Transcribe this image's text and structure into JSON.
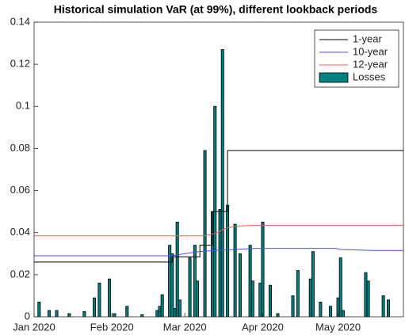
{
  "chart_data": {
    "type": "combo",
    "title": "Historical simulation VaR (at 99%), different lookback periods",
    "xlim": [
      0,
      147
    ],
    "xticks": [
      {
        "value": 0,
        "label": "Jan 2020"
      },
      {
        "value": 31,
        "label": "Feb 2020"
      },
      {
        "value": 60,
        "label": "Mar 2020"
      },
      {
        "value": 91,
        "label": "Apr 2020"
      },
      {
        "value": 121,
        "label": "May 2020"
      }
    ],
    "ylim": [
      0,
      0.14
    ],
    "yticks": [
      0,
      0.02,
      0.04,
      0.06,
      0.08,
      0.1,
      0.12,
      0.14
    ],
    "legend": "northeast",
    "series": [
      {
        "name": "1-year",
        "type": "line",
        "color": "#000000",
        "x": [
          0,
          55,
          55,
          66,
          66,
          71,
          71,
          77,
          77,
          147
        ],
        "values": [
          0.026,
          0.026,
          0.0285,
          0.0285,
          0.034,
          0.034,
          0.05,
          0.05,
          0.079,
          0.079
        ]
      },
      {
        "name": "10-year",
        "type": "line",
        "color": "#4d4dff",
        "x": [
          0,
          55,
          60,
          66,
          72,
          80,
          88,
          120,
          122,
          135,
          147
        ],
        "values": [
          0.029,
          0.029,
          0.03,
          0.031,
          0.0315,
          0.032,
          0.0325,
          0.0325,
          0.032,
          0.0315,
          0.0315
        ]
      },
      {
        "name": "12-year",
        "type": "line",
        "color": "#ff5c5c",
        "x": [
          0,
          67,
          70,
          73,
          76,
          80,
          88,
          147
        ],
        "values": [
          0.0385,
          0.0385,
          0.039,
          0.04,
          0.042,
          0.043,
          0.0435,
          0.0435
        ]
      },
      {
        "name": "Losses",
        "type": "bar",
        "color": "#008080",
        "x": [
          2,
          6,
          9,
          14,
          20,
          24,
          26,
          30,
          32,
          37,
          43,
          49,
          50,
          51,
          54,
          55,
          56,
          57,
          58,
          62,
          64,
          65,
          68,
          71,
          72,
          74,
          75,
          77,
          80,
          82,
          86,
          87,
          90,
          91,
          94,
          97,
          103,
          105,
          110,
          111,
          114,
          118,
          121,
          122,
          123,
          132,
          133,
          139,
          141
        ],
        "values": [
          0.007,
          0.003,
          0.003,
          0.0015,
          0.0025,
          0.009,
          0.016,
          0.018,
          0.0015,
          0.005,
          0.001,
          0.003,
          0.005,
          0.0105,
          0.034,
          0.03,
          0.004,
          0.045,
          0.008,
          0.028,
          0.034,
          0.017,
          0.079,
          0.05,
          0.1,
          0.051,
          0.127,
          0.053,
          0.044,
          0.03,
          0.034,
          0.017,
          0.016,
          0.045,
          0.015,
          0.0015,
          0.01,
          0.022,
          0.018,
          0.031,
          0.007,
          0.005,
          0.009,
          0.028,
          0.003,
          0.021,
          0.017,
          0.01,
          0.008
        ]
      }
    ]
  }
}
